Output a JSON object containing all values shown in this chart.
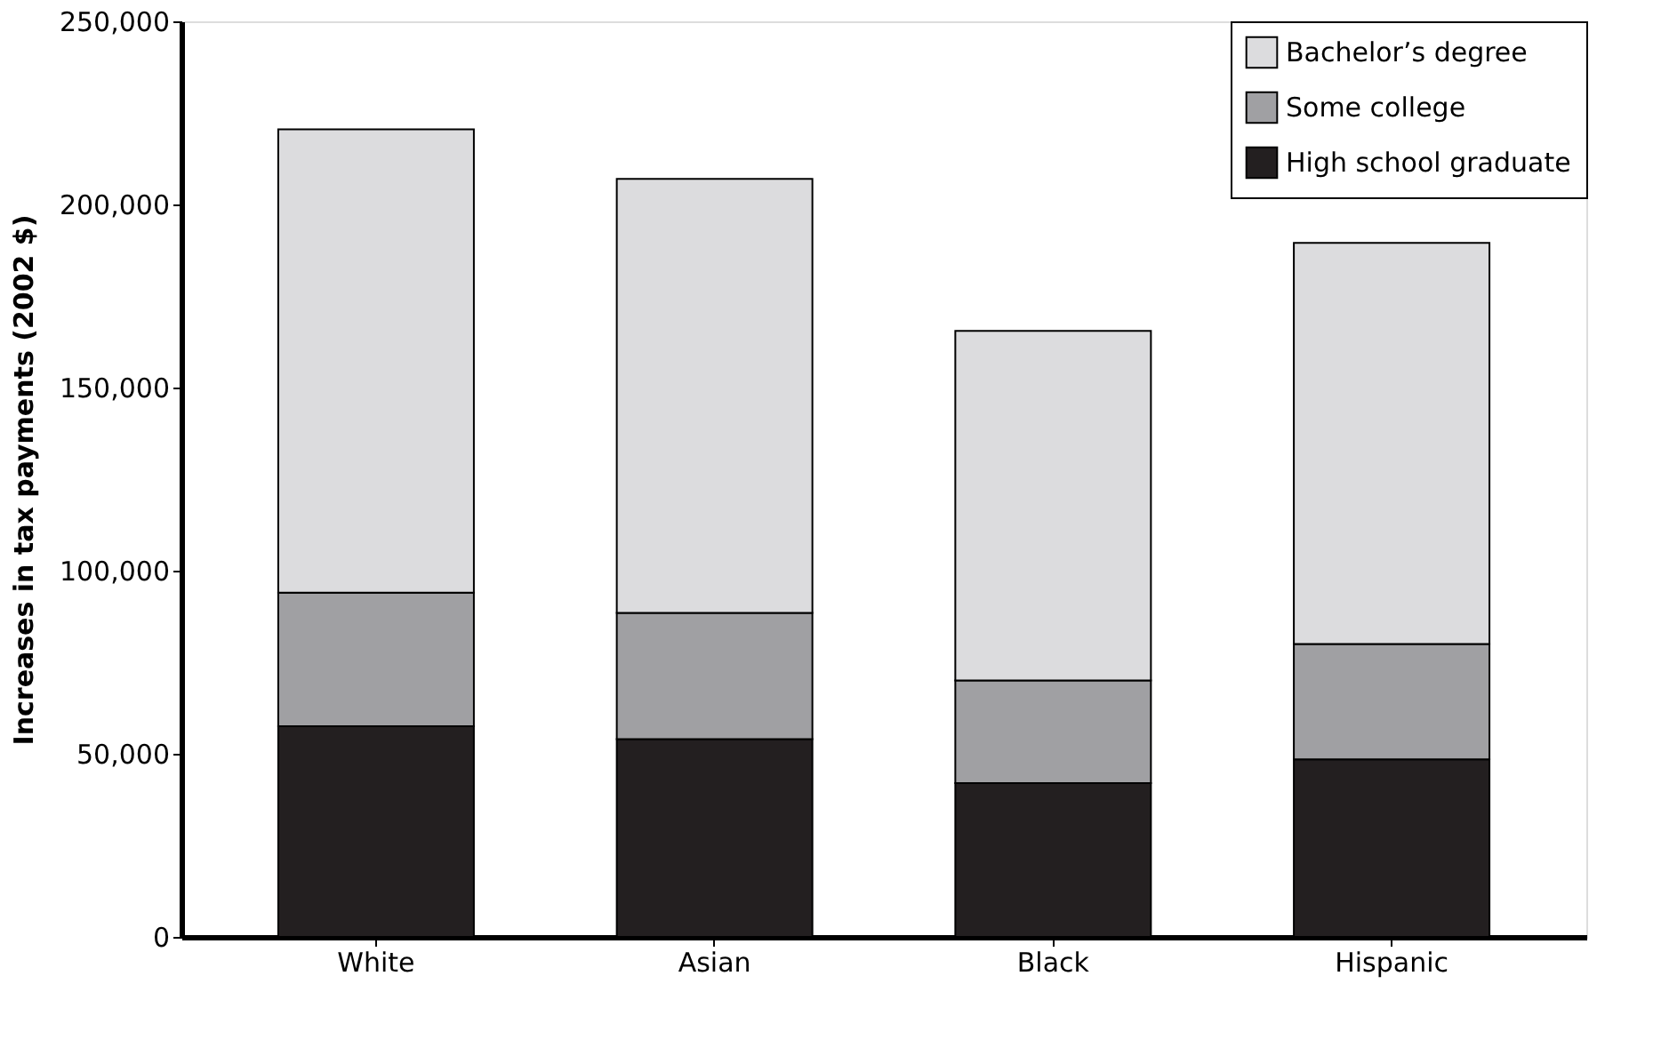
{
  "chart_data": {
    "type": "bar",
    "stacked": true,
    "ylabel": "Increases in tax payments (2002 $)",
    "categories": [
      "White",
      "Asian",
      "Black",
      "Hispanic"
    ],
    "series": [
      {
        "name": "High school graduate",
        "color": "#231f20",
        "values": [
          57500,
          54000,
          42000,
          48500
        ]
      },
      {
        "name": "Some college",
        "color": "#a0a0a3",
        "values": [
          36500,
          34500,
          28000,
          31500
        ]
      },
      {
        "name": "Bachelor’s degree",
        "color": "#dcdcde",
        "values": [
          126500,
          118500,
          95500,
          109500
        ]
      }
    ],
    "ylim": [
      0,
      250000
    ],
    "yticks": [
      0,
      {
        "value": 50000,
        "label": "50,000"
      },
      {
        "value": 100000,
        "label": "100,000"
      },
      {
        "value": 150000,
        "label": "150,000"
      },
      {
        "value": 200000,
        "label": "200,000"
      },
      {
        "value": 250000,
        "label": "250,000"
      }
    ],
    "grid": false,
    "legend": "top right"
  }
}
